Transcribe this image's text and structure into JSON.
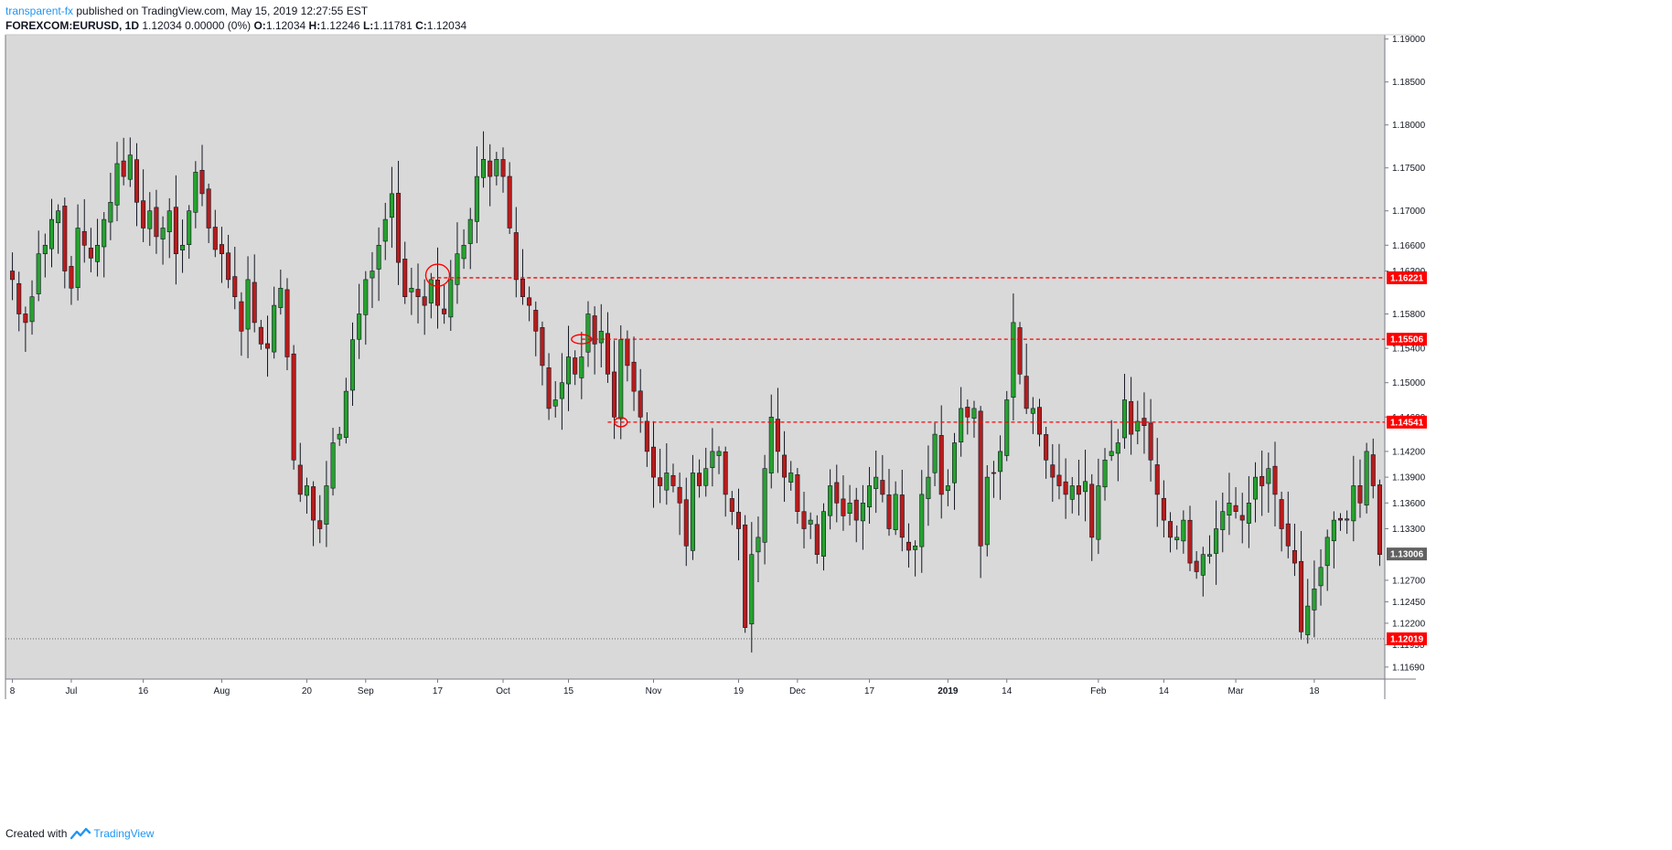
{
  "header": {
    "author": "transparent-fx",
    "published": " published on TradingView.com, May 15, 2019 12:27:55 EST",
    "symbol": "FOREXCOM:EURUSD, 1D",
    "change": "1.12034 0.00000 (0%)",
    "o_label": "O:",
    "o_value": "1.12034",
    "h_label": "H:",
    "h_value": "1.12246",
    "l_label": "L:",
    "l_value": "1.11781",
    "c_label": "C:",
    "c_value": "1.12034"
  },
  "footer": {
    "created": "Created with",
    "brand": "TradingView"
  },
  "colors": {
    "background": "#d9d9d9",
    "up": "#26a22f",
    "down": "#b71c1c",
    "level": "#ff0000",
    "price_box": "#616161"
  },
  "chart_data": {
    "type": "candlestick",
    "ylim": [
      1.1155,
      1.1905
    ],
    "y_ticks": [
      "1.19000",
      "1.18500",
      "1.18000",
      "1.17500",
      "1.17000",
      "1.16600",
      "1.16300",
      "1.15800",
      "1.15400",
      "1.15000",
      "1.14600",
      "1.14200",
      "1.13900",
      "1.13600",
      "1.13300",
      "1.12700",
      "1.12450",
      "1.12200",
      "1.11950",
      "1.11690"
    ],
    "y_tick_values": [
      1.19,
      1.185,
      1.18,
      1.175,
      1.17,
      1.166,
      1.163,
      1.158,
      1.154,
      1.15,
      1.146,
      1.142,
      1.139,
      1.136,
      1.133,
      1.127,
      1.1245,
      1.122,
      1.1195,
      1.1169
    ],
    "x_ticks": [
      {
        "label": "8",
        "i": 0
      },
      {
        "label": "Jul",
        "i": 9
      },
      {
        "label": "16",
        "i": 20
      },
      {
        "label": "Aug",
        "i": 32
      },
      {
        "label": "20",
        "i": 45
      },
      {
        "label": "Sep",
        "i": 54
      },
      {
        "label": "17",
        "i": 65
      },
      {
        "label": "Oct",
        "i": 75
      },
      {
        "label": "15",
        "i": 85
      },
      {
        "label": "Nov",
        "i": 98
      },
      {
        "label": "19",
        "i": 111
      },
      {
        "label": "Dec",
        "i": 120
      },
      {
        "label": "17",
        "i": 131
      },
      {
        "label": "2019",
        "i": 143
      },
      {
        "label": "14",
        "i": 152
      },
      {
        "label": "Feb",
        "i": 166
      },
      {
        "label": "14",
        "i": 176
      },
      {
        "label": "Mar",
        "i": 187
      },
      {
        "label": "18",
        "i": 199
      }
    ],
    "bold_x_tick": "2019",
    "levels": [
      {
        "label": "1.16221",
        "value": 1.16221,
        "start_i": 64
      },
      {
        "label": "1.15506",
        "value": 1.15506,
        "start_i": 87
      },
      {
        "label": "1.14541",
        "value": 1.14541,
        "start_i": 91
      }
    ],
    "last_price": {
      "label": "1.13006",
      "value": 1.13006
    },
    "current_price": {
      "label": "1.12019",
      "value": 1.12019
    },
    "key_closes": [
      1.162,
      1.158,
      1.157,
      1.16,
      1.165,
      1.166,
      1.169,
      1.17,
      1.163,
      1.161,
      1.168,
      1.166,
      1.1645,
      1.166,
      1.169,
      1.171,
      1.1755,
      1.174,
      1.1765,
      1.171,
      1.168,
      1.17,
      1.167,
      1.168,
      1.17,
      1.165,
      1.166,
      1.17,
      1.1745,
      1.172,
      1.168,
      1.1655,
      1.165,
      1.162,
      1.16,
      1.156,
      1.162,
      1.157,
      1.1545,
      1.154,
      1.159,
      1.161,
      1.153,
      1.141,
      1.137,
      1.138,
      1.134,
      1.133,
      1.138,
      1.143,
      1.144,
      1.149,
      1.155,
      1.158,
      1.162,
      1.163,
      1.166,
      1.169,
      1.172,
      1.164,
      1.16,
      1.161,
      1.16,
      1.159,
      1.162,
      1.159,
      1.158,
      1.162,
      1.165,
      1.166,
      1.169,
      1.174,
      1.176,
      1.174,
      1.176,
      1.174,
      1.168,
      1.162,
      1.16,
      1.159,
      1.156,
      1.152,
      1.147,
      1.148,
      1.15,
      1.153,
      1.151,
      1.153,
      1.158,
      1.1545,
      1.156,
      1.151,
      1.146,
      1.155,
      1.152,
      1.149,
      1.146,
      1.142,
      1.139,
      1.138,
      1.1395,
      1.138,
      1.136,
      1.131,
      1.1395,
      1.138,
      1.14,
      1.142,
      1.142,
      1.137,
      1.135,
      1.133,
      1.1215,
      1.13,
      1.132,
      1.14,
      1.146,
      1.142,
      1.139,
      1.1395,
      1.135,
      1.133,
      1.134,
      1.13,
      1.135,
      1.138,
      1.136,
      1.1345,
      1.136,
      1.134,
      1.136,
      1.138,
      1.139,
      1.137,
      1.133,
      1.137,
      1.132,
      1.1305,
      1.131,
      1.137,
      1.139,
      1.144,
      1.137,
      1.138,
      1.143,
      1.147,
      1.146,
      1.147,
      1.131,
      1.139,
      1.1395,
      1.142,
      1.148,
      1.157,
      1.151,
      1.147,
      1.147,
      1.144,
      1.141,
      1.139,
      1.138,
      1.137,
      1.138,
      1.137,
      1.1385,
      1.132,
      1.138,
      1.141,
      1.142,
      1.143,
      1.148,
      1.144,
      1.1455,
      1.145,
      1.141,
      1.137,
      1.134,
      1.132,
      1.132,
      1.134,
      1.129,
      1.128,
      1.13,
      1.13,
      1.133,
      1.135,
      1.136,
      1.135,
      1.134,
      1.136,
      1.139,
      1.138,
      1.14,
      1.137,
      1.133,
      1.131,
      1.129,
      1.121,
      1.124,
      1.126,
      1.1285,
      1.132,
      1.134,
      1.134,
      1.134,
      1.138,
      1.136,
      1.142,
      1.138,
      1.13
    ]
  }
}
